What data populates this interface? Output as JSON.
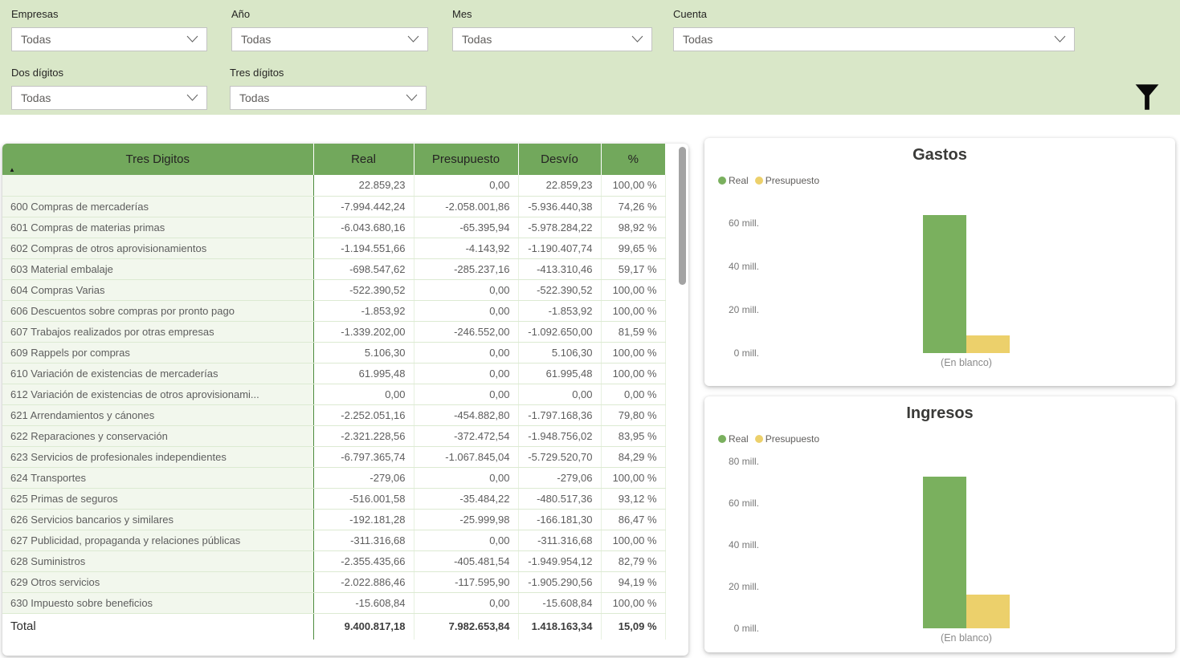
{
  "colors": {
    "filter_bar_bg": "#d9e7c8",
    "table_header_bg": "#72a85c",
    "real": "#7ab05e",
    "presupuesto": "#ecd06b",
    "column_divider_green": "#4e8c3f",
    "gridline": "#dcead2",
    "row_header_bg": "#f2f7ed"
  },
  "filters": {
    "fields": [
      {
        "label": "Empresas",
        "value": "Todas"
      },
      {
        "label": "Año",
        "value": "Todas"
      },
      {
        "label": "Mes",
        "value": "Todas"
      },
      {
        "label": "Cuenta",
        "value": "Todas"
      },
      {
        "label": "Dos dígitos",
        "value": "Todas"
      },
      {
        "label": "Tres dígitos",
        "value": "Todas"
      }
    ]
  },
  "table": {
    "columns": [
      "Tres Digitos",
      "Real",
      "Presupuesto",
      "Desvío",
      "%"
    ],
    "sort_indicator": "ascending",
    "rows": [
      [
        "",
        "22.859,23",
        "0,00",
        "22.859,23",
        "100,00 %"
      ],
      [
        "600 Compras de mercaderías",
        "-7.994.442,24",
        "-2.058.001,86",
        "-5.936.440,38",
        "74,26 %"
      ],
      [
        "601 Compras de materias primas",
        "-6.043.680,16",
        "-65.395,94",
        "-5.978.284,22",
        "98,92 %"
      ],
      [
        "602 Compras de otros aprovisionamientos",
        "-1.194.551,66",
        "-4.143,92",
        "-1.190.407,74",
        "99,65 %"
      ],
      [
        "603 Material embalaje",
        "-698.547,62",
        "-285.237,16",
        "-413.310,46",
        "59,17 %"
      ],
      [
        "604 Compras Varias",
        "-522.390,52",
        "0,00",
        "-522.390,52",
        "100,00 %"
      ],
      [
        "606 Descuentos sobre compras por pronto pago",
        "-1.853,92",
        "0,00",
        "-1.853,92",
        "100,00 %"
      ],
      [
        "607 Trabajos realizados por otras empresas",
        "-1.339.202,00",
        "-246.552,00",
        "-1.092.650,00",
        "81,59 %"
      ],
      [
        "609 Rappels por compras",
        "5.106,30",
        "0,00",
        "5.106,30",
        "100,00 %"
      ],
      [
        "610 Variación de existencias de mercaderías",
        "61.995,48",
        "0,00",
        "61.995,48",
        "100,00 %"
      ],
      [
        "612 Variación de existencias de otros aprovisionami...",
        "0,00",
        "0,00",
        "0,00",
        "0,00 %"
      ],
      [
        "621 Arrendamientos y cánones",
        "-2.252.051,16",
        "-454.882,80",
        "-1.797.168,36",
        "79,80 %"
      ],
      [
        "622 Reparaciones y conservación",
        "-2.321.228,56",
        "-372.472,54",
        "-1.948.756,02",
        "83,95 %"
      ],
      [
        "623 Servicios de profesionales independientes",
        "-6.797.365,74",
        "-1.067.845,04",
        "-5.729.520,70",
        "84,29 %"
      ],
      [
        "624 Transportes",
        "-279,06",
        "0,00",
        "-279,06",
        "100,00 %"
      ],
      [
        "625 Primas de seguros",
        "-516.001,58",
        "-35.484,22",
        "-480.517,36",
        "93,12 %"
      ],
      [
        "626 Servicios bancarios y similares",
        "-192.181,28",
        "-25.999,98",
        "-166.181,30",
        "86,47 %"
      ],
      [
        "627 Publicidad, propaganda y relaciones públicas",
        "-311.316,68",
        "0,00",
        "-311.316,68",
        "100,00 %"
      ],
      [
        "628 Suministros",
        "-2.355.435,66",
        "-405.481,54",
        "-1.949.954,12",
        "82,79 %"
      ],
      [
        "629 Otros servicios",
        "-2.022.886,46",
        "-117.595,90",
        "-1.905.290,56",
        "94,19 %"
      ],
      [
        "630 Impuesto sobre beneficios",
        "-15.608,84",
        "0,00",
        "-15.608,84",
        "100,00 %"
      ]
    ],
    "total": [
      "Total",
      "9.400.817,18",
      "7.982.653,84",
      "1.418.163,34",
      "15,09 %"
    ]
  },
  "chart_data": [
    {
      "type": "bar",
      "title": "Gastos",
      "categories": [
        "(En blanco)"
      ],
      "series": [
        {
          "name": "Real",
          "color_key": "real",
          "values": [
            63.5
          ]
        },
        {
          "name": "Presupuesto",
          "color_key": "presupuesto",
          "values": [
            8.0
          ]
        }
      ],
      "xlabel": "",
      "ylabel": "",
      "unit": "millones",
      "yticks": [
        0,
        20,
        40,
        60
      ],
      "tick_suffix": " mill.",
      "ymax": 66.5,
      "grid": false,
      "legend_position": "top-left"
    },
    {
      "type": "bar",
      "title": "Ingresos",
      "categories": [
        "(En blanco)"
      ],
      "series": [
        {
          "name": "Real",
          "color_key": "real",
          "values": [
            72.8
          ]
        },
        {
          "name": "Presupuesto",
          "color_key": "presupuesto",
          "values": [
            16.0
          ]
        }
      ],
      "xlabel": "",
      "ylabel": "",
      "unit": "millones",
      "yticks": [
        0,
        20,
        40,
        60,
        80
      ],
      "tick_suffix": " mill.",
      "ymax": 80,
      "grid": false,
      "legend_position": "top-left"
    }
  ]
}
